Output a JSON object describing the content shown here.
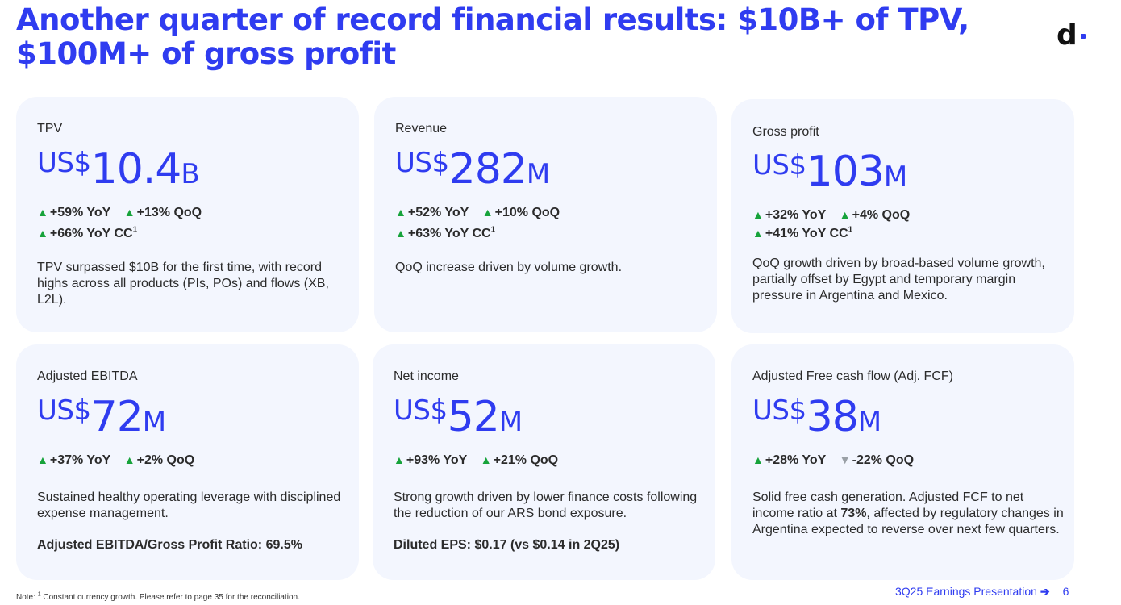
{
  "header": {
    "title": "Another quarter of record financial results: $10B+ of TPV, $100M+ of gross profit",
    "logo_text": "d"
  },
  "colors": {
    "accent": "#2f3cf0",
    "card_bg": "#f3f6fe",
    "up": "#17a33b",
    "down": "#9aa0a6"
  },
  "cards": [
    {
      "label": "TPV",
      "currency": "US$",
      "value": "10.4",
      "unit": "B",
      "growth_line1": [
        {
          "dir": "up",
          "text": "+59% YoY"
        },
        {
          "dir": "up",
          "text": "+13% QoQ"
        }
      ],
      "growth_line2": {
        "dir": "up",
        "text": "+66% YoY CC",
        "footnote": "1"
      },
      "description": "TPV surpassed $10B for the first time, with record highs across all products (PIs, POs) and flows (XB, L2L)."
    },
    {
      "label": "Revenue",
      "currency": "US$",
      "value": "282",
      "unit": "M",
      "growth_line1": [
        {
          "dir": "up",
          "text": "+52% YoY"
        },
        {
          "dir": "up",
          "text": "+10% QoQ"
        }
      ],
      "growth_line2": {
        "dir": "up",
        "text": "+63% YoY CC",
        "footnote": "1"
      },
      "description": "QoQ increase driven by volume growth."
    },
    {
      "label": "Gross profit",
      "currency": "US$",
      "value": "103",
      "unit": "M",
      "growth_line1": [
        {
          "dir": "up",
          "text": "+32% YoY"
        },
        {
          "dir": "up",
          "text": "+4% QoQ"
        }
      ],
      "growth_line2": {
        "dir": "up",
        "text": "+41% YoY CC",
        "footnote": "1"
      },
      "description": "QoQ growth driven by broad-based volume growth, partially offset by Egypt and temporary margin pressure in Argentina and Mexico."
    },
    {
      "label": "Adjusted EBITDA",
      "currency": "US$",
      "value": "72",
      "unit": "M",
      "growth_line1": [
        {
          "dir": "up",
          "text": "+37% YoY"
        },
        {
          "dir": "up",
          "text": "+2% QoQ"
        }
      ],
      "description": "Sustained healthy operating leverage with disciplined expense management.",
      "bold_line": "Adjusted EBITDA/Gross Profit Ratio: 69.5%"
    },
    {
      "label": "Net income",
      "currency": "US$",
      "value": "52",
      "unit": "M",
      "growth_line1": [
        {
          "dir": "up",
          "text": "+93% YoY"
        },
        {
          "dir": "up",
          "text": "+21% QoQ"
        }
      ],
      "description": "Strong growth driven by lower finance costs following the reduction of our ARS bond exposure.",
      "bold_line": "Diluted EPS: $0.17 (vs $0.14 in 2Q25)"
    },
    {
      "label": "Adjusted Free cash flow (Adj. FCF)",
      "currency": "US$",
      "value": "38",
      "unit": "M",
      "growth_line1": [
        {
          "dir": "up",
          "text": "+28% YoY"
        },
        {
          "dir": "down",
          "text": "-22% QoQ"
        }
      ],
      "description_before": "Solid free cash generation. Adjusted FCF to net income ratio at ",
      "description_bold": "73%",
      "description_after": ", affected by regulatory changes in Argentina expected to reverse over next few quarters."
    }
  ],
  "footer": {
    "note_marker": "1",
    "note": "Constant currency growth. Please refer to page 35 for the reconciliation.",
    "note_prefix": "Note: ",
    "presentation": "3Q25 Earnings Presentation",
    "arrow": "➔",
    "page": "6"
  }
}
